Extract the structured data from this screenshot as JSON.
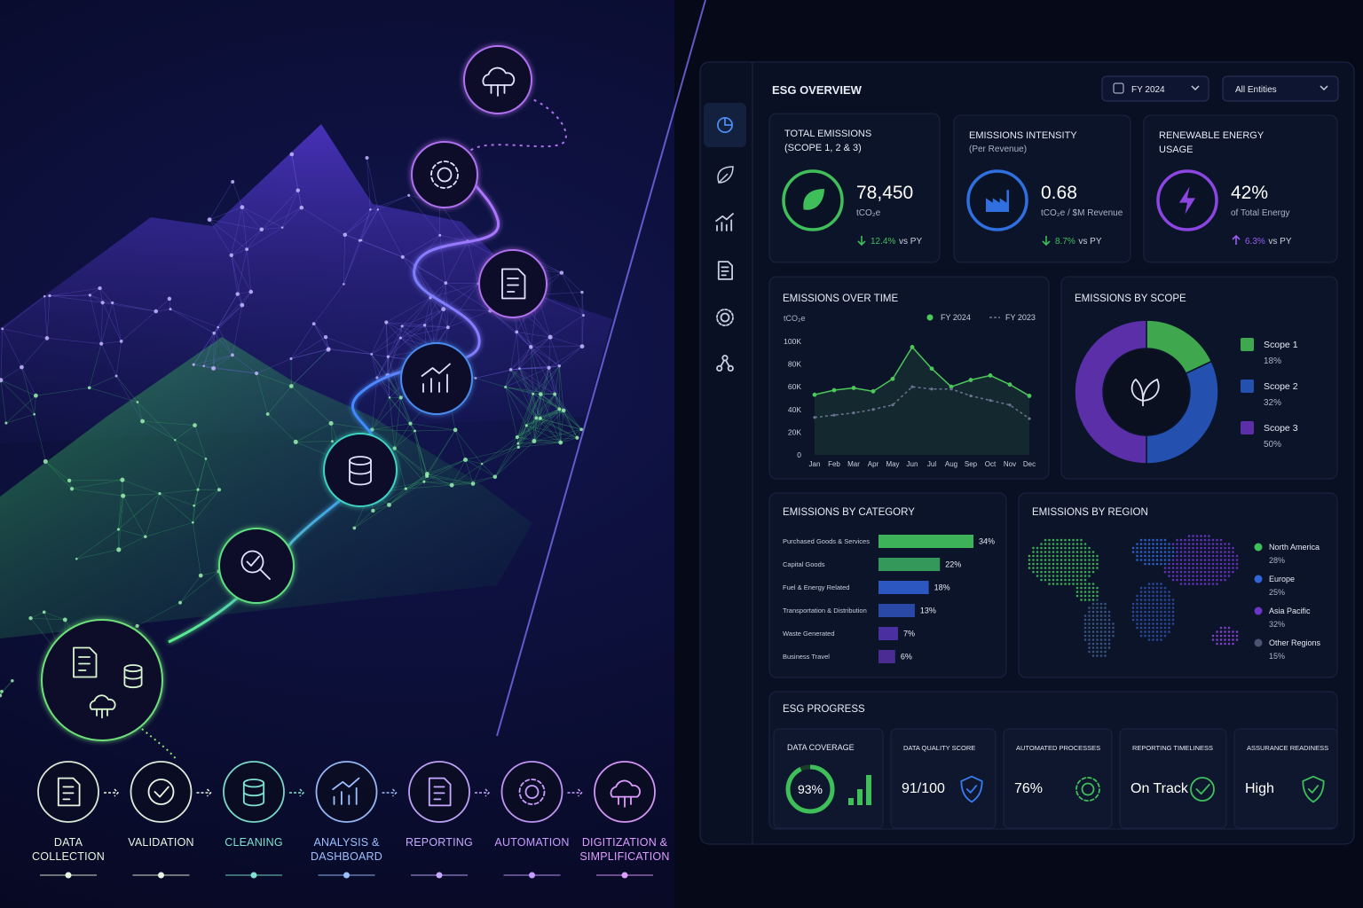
{
  "pipeline": {
    "steps": [
      {
        "label": "DATA COLLECTION",
        "color": "#e6f5e0"
      },
      {
        "label": "VALIDATION",
        "color": "#e8f7e4"
      },
      {
        "label": "CLEANING",
        "color": "#7fe3cf"
      },
      {
        "label": "ANALYSIS & DASHBOARD",
        "color": "#9cc0ff"
      },
      {
        "label": "REPORTING",
        "color": "#c7a9ff"
      },
      {
        "label": "AUTOMATION",
        "color": "#c99cff"
      },
      {
        "label": "DIGITIZATION & SIMPLIFICATION",
        "color": "#df9dff"
      }
    ]
  },
  "dashboard": {
    "title": "ESG OVERVIEW",
    "filters": [
      "FY 2024",
      "All Entities"
    ],
    "kpis": [
      {
        "title": "TOTAL EMISSIONS",
        "subtitle": "(SCOPE 1, 2 & 3)",
        "value": "78,450",
        "unit": "tCO₂e",
        "change": "12.4%",
        "comparison": "vs PY",
        "color": "#3fbf5a"
      },
      {
        "title": "EMISSIONS INTENSITY",
        "subtitle": "(Per Revenue)",
        "value": "0.68",
        "unit": "tCO₂e / $M Revenue",
        "change": "8.7%",
        "comparison": "vs PY",
        "color": "#2f6fe0"
      },
      {
        "title": "RENEWABLE ENERGY USAGE",
        "value": "42%",
        "unit": "of Total Energy",
        "change": "6.3%",
        "comparison": "vs PY",
        "color": "#8b45e0"
      }
    ],
    "region": {
      "title": "EMISSIONS BY REGION",
      "items": [
        {
          "name": "North America",
          "share": "28%",
          "color": "#3fbf5a"
        },
        {
          "name": "Europe",
          "share": "25%",
          "color": "#2f66d8"
        },
        {
          "name": "Asia Pacific",
          "share": "32%",
          "color": "#6b35c8"
        },
        {
          "name": "Other Regions",
          "share": "15%",
          "color": "#4a5470"
        }
      ]
    },
    "progress": {
      "title": "ESG PROGRESS",
      "items": [
        {
          "label": "DATA COVERAGE",
          "value": "93%"
        },
        {
          "label": "DATA QUALITY SCORE",
          "value": "91/100"
        },
        {
          "label": "AUTOMATED PROCESSES",
          "value": "76%"
        },
        {
          "label": "REPORTING TIMELINESS",
          "value": "On Track"
        },
        {
          "label": "ASSURANCE READINESS",
          "value": "High"
        }
      ]
    }
  },
  "chart_data": [
    {
      "type": "line",
      "title": "EMISSIONS OVER TIME",
      "y_label": "tCO₂e",
      "categories": [
        "Jan",
        "Feb",
        "Mar",
        "Apr",
        "May",
        "Jun",
        "Jul",
        "Aug",
        "Sep",
        "Oct",
        "Nov",
        "Dec"
      ],
      "series": [
        {
          "name": "FY 2024",
          "color": "#4cc85a",
          "values": [
            53000,
            57000,
            59000,
            56000,
            67000,
            95000,
            76000,
            60000,
            66000,
            70000,
            62000,
            52000
          ]
        },
        {
          "name": "FY 2023",
          "color": "#6b7390",
          "dash": true,
          "values": [
            33000,
            35000,
            37000,
            40000,
            44000,
            60000,
            58000,
            58000,
            52000,
            48000,
            44000,
            32000
          ]
        }
      ],
      "ylim": [
        0,
        100000
      ],
      "yticks": [
        0,
        {
          "value": 20000,
          "label": "20K"
        },
        {
          "value": 40000,
          "label": "40K"
        },
        {
          "value": 60000,
          "label": "60K"
        },
        {
          "value": 80000,
          "label": "80K"
        },
        {
          "value": 100000,
          "label": "100K"
        }
      ]
    },
    {
      "type": "donut",
      "title": "EMISSIONS BY SCOPE",
      "categories": [
        "Scope 1",
        "Scope 2",
        "Scope 3"
      ],
      "values": [
        18,
        32,
        50
      ],
      "value_labels": [
        "18%",
        "32%",
        "50%"
      ],
      "colors": [
        "#3fa84e",
        "#2450b0",
        "#5a2fa8"
      ]
    },
    {
      "type": "bar",
      "orientation": "horizontal",
      "title": "EMISSIONS BY CATEGORY",
      "categories": [
        "Purchased Goods & Services",
        "Capital Goods",
        "Fuel & Energy Related",
        "Transportation & Distribution",
        "Waste Generated",
        "Business Travel"
      ],
      "values": [
        34,
        22,
        18,
        13,
        7,
        6
      ],
      "value_labels": [
        "34%",
        "22%",
        "18%",
        "13%",
        "7%",
        "6%"
      ],
      "colors": [
        "#3db258",
        "#34985a",
        "#2c56c0",
        "#2a48a6",
        "#4a2fa0",
        "#4a2c92"
      ]
    }
  ]
}
